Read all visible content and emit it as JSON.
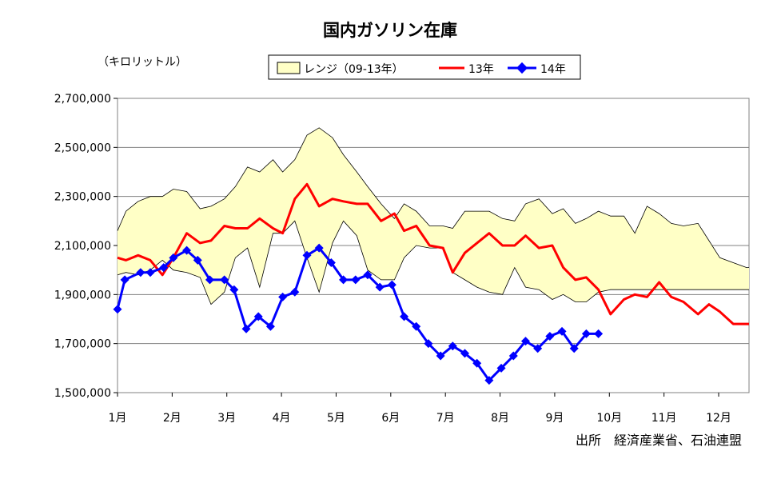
{
  "chart_data": {
    "type": "line",
    "title": "国内ガソリン在庫",
    "unit_label": "（キロリットル）",
    "source": "出所　経済産業省、石油連盟",
    "ylim": [
      1500000,
      2700000
    ],
    "y_ticks": [
      1500000,
      1700000,
      1900000,
      2100000,
      2300000,
      2500000,
      2700000
    ],
    "y_tick_labels": [
      "1,500,000",
      "1,700,000",
      "1,900,000",
      "2,100,000",
      "2,300,000",
      "2,500,000",
      "2,700,000"
    ],
    "x_range": [
      0,
      52
    ],
    "x_ticks": [
      0,
      4.5,
      9,
      13.5,
      18,
      22.5,
      27,
      31.5,
      36,
      40.5,
      45,
      49.5
    ],
    "x_tick_labels": [
      "1月",
      "2月",
      "3月",
      "4月",
      "5月",
      "6月",
      "7月",
      "8月",
      "9月",
      "10月",
      "11月",
      "12月"
    ],
    "legend": {
      "position": "top",
      "range_label": "レンジ（09-13年）",
      "series_13": "13年",
      "series_14": "14年"
    },
    "colors": {
      "range_fill": "#ffffc6",
      "range_stroke": "#000000",
      "series_13": "#ff0000",
      "series_14": "#0000ff"
    },
    "range_band": {
      "x": [
        0,
        0.7,
        1.7,
        2.7,
        3.7,
        4.6,
        5.7,
        6.8,
        7.7,
        8.8,
        9.7,
        10.7,
        11.7,
        12.8,
        13.6,
        14.6,
        15.6,
        16.6,
        17.7,
        18.6,
        19.7,
        20.6,
        21.7,
        22.8,
        23.6,
        24.6,
        25.7,
        26.8,
        27.6,
        28.6,
        29.6,
        30.6,
        31.7,
        32.7,
        33.6,
        34.7,
        35.8,
        36.7,
        37.7,
        38.6,
        39.6,
        40.6,
        41.7,
        42.6,
        43.6,
        44.6,
        45.6,
        46.6,
        47.8,
        48.7,
        49.6,
        50.7,
        51.8,
        52
      ],
      "upper": [
        2160000,
        2240000,
        2280000,
        2300000,
        2300000,
        2330000,
        2320000,
        2250000,
        2260000,
        2290000,
        2340000,
        2420000,
        2400000,
        2450000,
        2400000,
        2450000,
        2550000,
        2580000,
        2540000,
        2470000,
        2400000,
        2340000,
        2270000,
        2210000,
        2270000,
        2240000,
        2180000,
        2180000,
        2170000,
        2240000,
        2240000,
        2240000,
        2210000,
        2200000,
        2270000,
        2290000,
        2230000,
        2250000,
        2190000,
        2210000,
        2240000,
        2220000,
        2220000,
        2150000,
        2260000,
        2230000,
        2190000,
        2180000,
        2190000,
        2120000,
        2050000,
        2030000,
        2010000,
        2010000
      ],
      "lower": [
        1980000,
        1990000,
        1980000,
        2000000,
        2040000,
        2000000,
        1990000,
        1970000,
        1860000,
        1910000,
        2050000,
        2090000,
        1930000,
        2150000,
        2150000,
        2200000,
        2050000,
        1910000,
        2110000,
        2200000,
        2140000,
        2000000,
        1960000,
        1960000,
        2050000,
        2100000,
        2090000,
        2090000,
        1990000,
        1960000,
        1930000,
        1910000,
        1900000,
        2010000,
        1930000,
        1920000,
        1880000,
        1900000,
        1870000,
        1870000,
        1910000,
        1920000,
        1920000,
        1920000,
        1920000,
        1920000,
        1920000,
        1920000,
        1920000,
        1920000,
        1920000,
        1920000,
        1920000,
        1920000
      ]
    },
    "series": [
      {
        "name": "13年",
        "x": [
          0,
          0.7,
          1.7,
          2.7,
          3.7,
          4.6,
          5.7,
          6.8,
          7.7,
          8.8,
          9.7,
          10.7,
          11.7,
          12.8,
          13.6,
          14.6,
          15.6,
          16.6,
          17.7,
          18.6,
          19.7,
          20.6,
          21.7,
          22.8,
          23.6,
          24.6,
          25.7,
          26.8,
          27.6,
          28.6,
          29.6,
          30.6,
          31.7,
          32.7,
          33.6,
          34.7,
          35.8,
          36.7,
          37.7,
          38.6,
          39.6,
          40.6,
          41.7,
          42.6,
          43.6,
          44.6,
          45.6,
          46.6,
          47.8,
          48.7,
          49.6,
          50.7,
          51.8,
          52
        ],
        "values": [
          2050000,
          2040000,
          2060000,
          2040000,
          1980000,
          2050000,
          2150000,
          2110000,
          2120000,
          2180000,
          2170000,
          2170000,
          2210000,
          2170000,
          2150000,
          2290000,
          2350000,
          2260000,
          2290000,
          2280000,
          2270000,
          2270000,
          2200000,
          2230000,
          2160000,
          2180000,
          2100000,
          2090000,
          1990000,
          2070000,
          2110000,
          2150000,
          2100000,
          2100000,
          2140000,
          2090000,
          2100000,
          2010000,
          1960000,
          1970000,
          1920000,
          1820000,
          1880000,
          1900000,
          1890000,
          1950000,
          1890000,
          1870000,
          1820000,
          1860000,
          1830000,
          1780000,
          1780000,
          1780000
        ]
      },
      {
        "name": "14年",
        "x": [
          0,
          0.6,
          1.9,
          2.7,
          3.8,
          4.6,
          5.7,
          6.6,
          7.6,
          8.8,
          9.6,
          10.6,
          11.6,
          12.6,
          13.6,
          14.6,
          15.6,
          16.6,
          17.6,
          18.6,
          19.6,
          20.6,
          21.6,
          22.6,
          23.6,
          24.6,
          25.6,
          26.6,
          27.6,
          28.6,
          29.6,
          30.6,
          31.6,
          32.6,
          33.6,
          34.6,
          35.6,
          36.6,
          37.6,
          38.6,
          39.6
        ],
        "values": [
          1840000,
          1960000,
          1990000,
          1990000,
          2010000,
          2050000,
          2080000,
          2040000,
          1960000,
          1960000,
          1920000,
          1760000,
          1810000,
          1770000,
          1890000,
          1910000,
          2060000,
          2090000,
          2030000,
          1960000,
          1960000,
          1980000,
          1930000,
          1940000,
          1810000,
          1770000,
          1700000,
          1650000,
          1690000,
          1660000,
          1620000,
          1550000,
          1600000,
          1650000,
          1710000,
          1680000,
          1730000,
          1750000,
          1680000,
          1740000,
          1740000
        ]
      }
    ]
  }
}
